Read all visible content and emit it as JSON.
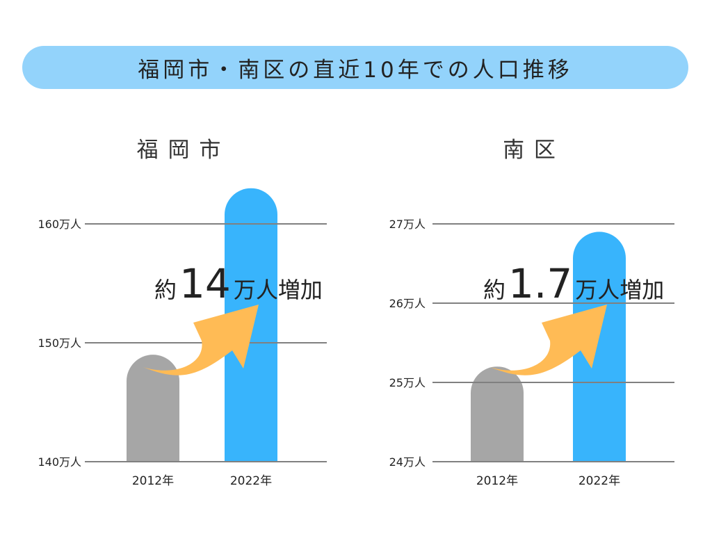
{
  "title": "福岡市・南区の直近10年での人口推移",
  "colors": {
    "title_bg": "#93d3fb",
    "bar_2012": "#a6a6a6",
    "bar_2022": "#38b4fc",
    "arrow": "#ffbb55",
    "grid": "#808080"
  },
  "chart_data": [
    {
      "type": "bar",
      "title": "福 岡 市",
      "categories": [
        "2012年",
        "2022年"
      ],
      "values": [
        149,
        163
      ],
      "ylim": [
        140,
        165
      ],
      "ticks": [
        {
          "value": 140,
          "label": "140万人"
        },
        {
          "value": 150,
          "label": "150万人"
        },
        {
          "value": 160,
          "label": "160万人"
        }
      ],
      "grid": true,
      "annotation": {
        "prefix": "約",
        "number": "14",
        "suffix": "万人増加"
      }
    },
    {
      "type": "bar",
      "title": "南 区",
      "categories": [
        "2012年",
        "2022年"
      ],
      "values": [
        25.2,
        26.9
      ],
      "ylim": [
        24,
        27.5
      ],
      "ticks": [
        {
          "value": 24,
          "label": "24万人"
        },
        {
          "value": 25,
          "label": "25万人"
        },
        {
          "value": 26,
          "label": "26万人"
        },
        {
          "value": 27,
          "label": "27万人"
        }
      ],
      "grid": true,
      "annotation": {
        "prefix": "約",
        "number": "1.7",
        "suffix": "万人増加"
      }
    }
  ]
}
